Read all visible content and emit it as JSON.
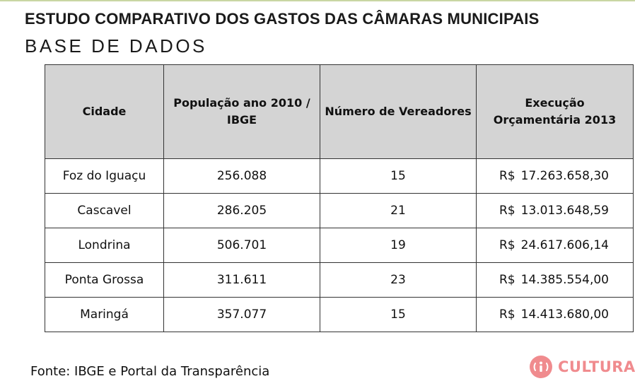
{
  "header": {
    "title": "ESTUDO COMPARATIVO DOS GASTOS DAS CÂMARAS MUNICIPAIS",
    "subtitle": "BASE DE DADOS"
  },
  "table": {
    "columns": [
      "Cidade",
      "População ano 2010 / IBGE",
      "Número de Vereadores",
      "Execução Orçamentária 2013"
    ],
    "currency": "R$",
    "rows": [
      {
        "city": "Foz do Iguaçu",
        "population": "256.088",
        "councillors": "15",
        "budget": "17.263.658,30"
      },
      {
        "city": "Cascavel",
        "population": "286.205",
        "councillors": "21",
        "budget": "13.013.648,59"
      },
      {
        "city": "Londrina",
        "population": "506.701",
        "councillors": "19",
        "budget": "24.617.606,14"
      },
      {
        "city": "Ponta Grossa",
        "population": "311.611",
        "councillors": "23",
        "budget": "14.385.554,00"
      },
      {
        "city": "Maringá",
        "population": "357.077",
        "councillors": "15",
        "budget": "14.413.680,00"
      }
    ]
  },
  "footer": {
    "source": "Fonte: IBGE e Portal da Transparência"
  },
  "logo": {
    "text": "CULTURA",
    "icon": "info-icon",
    "color": "#f08b8e"
  }
}
